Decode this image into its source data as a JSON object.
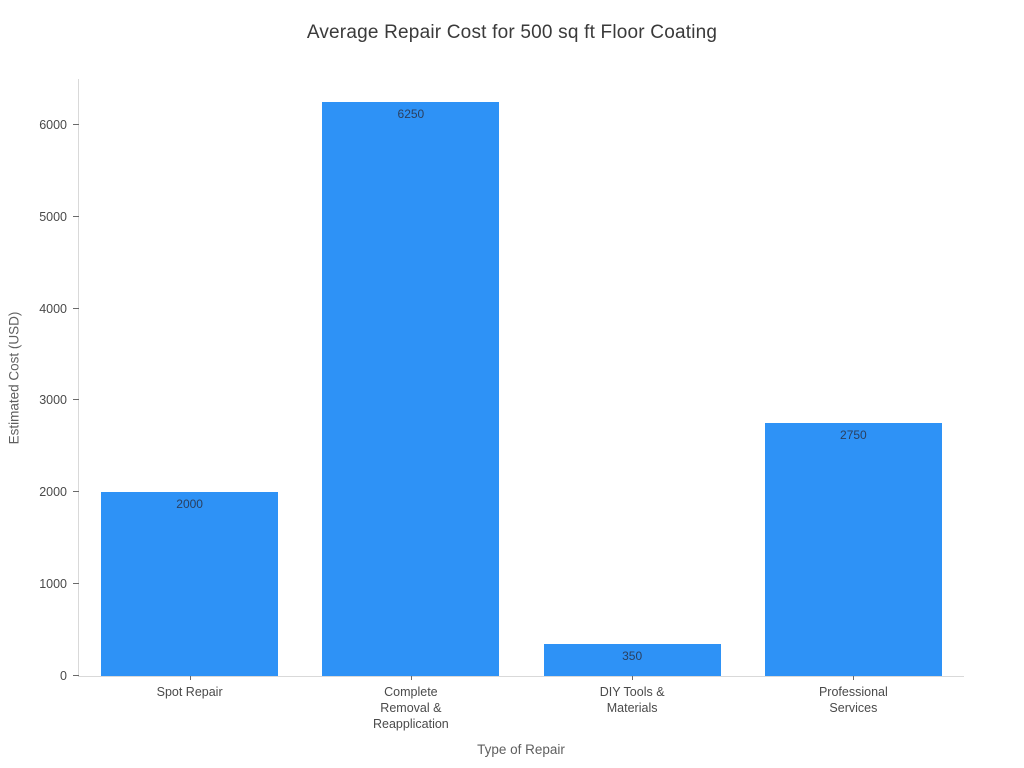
{
  "chart_data": {
    "type": "bar",
    "title": "Average Repair Cost for 500 sq ft Floor Coating",
    "xlabel": "Type of Repair",
    "ylabel": "Estimated Cost (USD)",
    "categories": [
      "Spot Repair",
      "Complete Removal & Reapplication",
      "DIY Tools & Materials",
      "Professional Services"
    ],
    "category_label_lines": [
      [
        "Spot Repair"
      ],
      [
        "Complete",
        "Removal &",
        "Reapplication"
      ],
      [
        "DIY Tools &",
        "Materials"
      ],
      [
        "Professional",
        "Services"
      ]
    ],
    "values": [
      2000,
      6250,
      350,
      2750
    ],
    "bar_labels": [
      "2000",
      "6250",
      "350",
      "2750"
    ],
    "ylim": [
      0,
      6500
    ],
    "yticks": [
      0,
      1000,
      2000,
      3000,
      4000,
      5000,
      6000
    ],
    "grid": false,
    "legend": false,
    "colors": {
      "bar_fill": "#2e92f6",
      "bar_label_text": "#2a3f5f",
      "tick_text": "#4a4a4a",
      "axis_title_text": "#5f5f5f",
      "title_text": "#3a3a3a",
      "axis_line": "#d9d9d9",
      "background": "#ffffff"
    }
  }
}
